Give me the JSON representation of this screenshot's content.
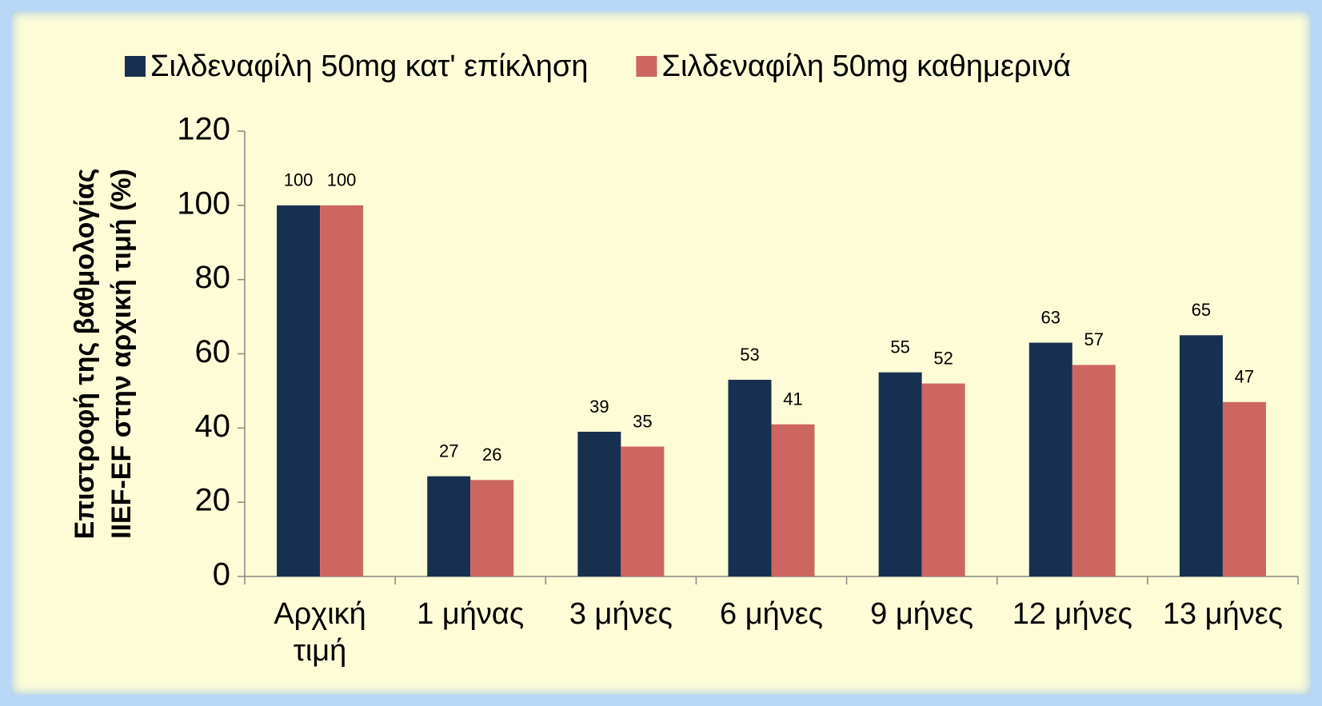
{
  "chart_data": {
    "type": "bar",
    "ylabel": [
      "Επιστροφή της βαθμολογίας",
      "IIEF-EF στην αρχική τιμή (%)"
    ],
    "categories": [
      "Αρχική τιμή",
      "1 μήνας",
      "3 μήνες",
      "6 μήνες",
      "9 μήνες",
      "12 μήνες",
      "13 μήνες"
    ],
    "series": [
      {
        "name": "Σιλδεναφίλη 50mg κατ' επίκληση",
        "color": "#17304f",
        "values": [
          100,
          27,
          39,
          53,
          55,
          63,
          65
        ]
      },
      {
        "name": "Σιλδεναφίλη 50mg καθημερινά",
        "color": "#cd6660",
        "values": [
          100,
          26,
          35,
          41,
          52,
          57,
          47
        ]
      }
    ],
    "ylim": [
      0,
      120
    ],
    "yticks": [
      0,
      20,
      40,
      60,
      80,
      100,
      120
    ],
    "legend": "top"
  }
}
